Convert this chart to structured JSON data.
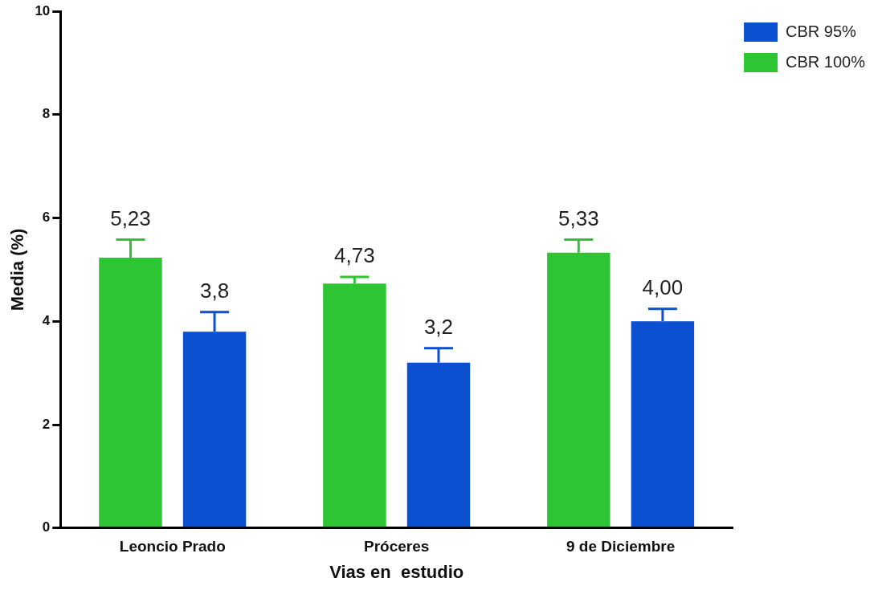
{
  "chart_data": {
    "type": "bar",
    "xlabel": "Vias en  estudio",
    "ylabel": "Media (%)",
    "categories": [
      "Leoncio Prado",
      "Próceres",
      "9 de Diciembre"
    ],
    "series": [
      {
        "name": "CBR 100%",
        "color": "#2ec535",
        "values": [
          5.23,
          4.73,
          5.33
        ],
        "errors": [
          [
            5.23,
            5.58
          ],
          [
            4.73,
            4.86
          ],
          [
            5.33,
            5.58
          ]
        ],
        "value_labels": [
          "5,23",
          "4,73",
          "5,33"
        ]
      },
      {
        "name": "CBR 95%",
        "color": "#0a50d0",
        "values": [
          3.8,
          3.2,
          4.0
        ],
        "errors": [
          [
            3.8,
            4.18
          ],
          [
            3.2,
            3.48
          ],
          [
            4.0,
            4.24
          ]
        ],
        "value_labels": [
          "3,8",
          "3,2",
          "4,00"
        ]
      }
    ],
    "ylim": [
      0,
      10
    ],
    "yticks": [
      0,
      2,
      4,
      6,
      8,
      10
    ],
    "grid": false,
    "legend": "top right"
  }
}
